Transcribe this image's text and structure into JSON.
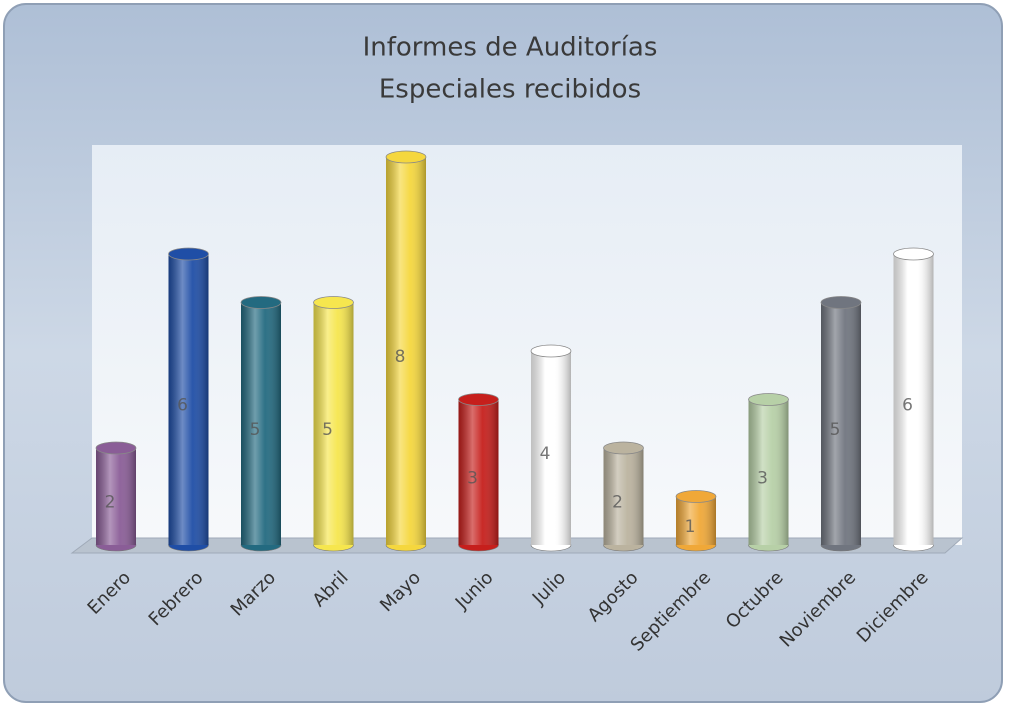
{
  "chart_data": {
    "type": "bar",
    "title": [
      "Informes de Auditorías",
      "Especiales recibidos"
    ],
    "categories": [
      "Enero",
      "Febrero",
      "Marzo",
      "Abril",
      "Mayo",
      "Junio",
      "Julio",
      "Agosto",
      "Septiembre",
      "Octubre",
      "Noviembre",
      "Diciembre"
    ],
    "values": [
      2,
      6,
      5,
      5,
      8,
      3,
      4,
      2,
      1,
      3,
      5,
      6
    ],
    "colors": [
      "#8a5d97",
      "#1f4ea6",
      "#236a80",
      "#f6e64e",
      "#f5d73e",
      "#c61f1c",
      "#ffffff",
      "#bbb39f",
      "#f0a838",
      "#b7d0a7",
      "#70757f",
      "#ffffff"
    ]
  }
}
